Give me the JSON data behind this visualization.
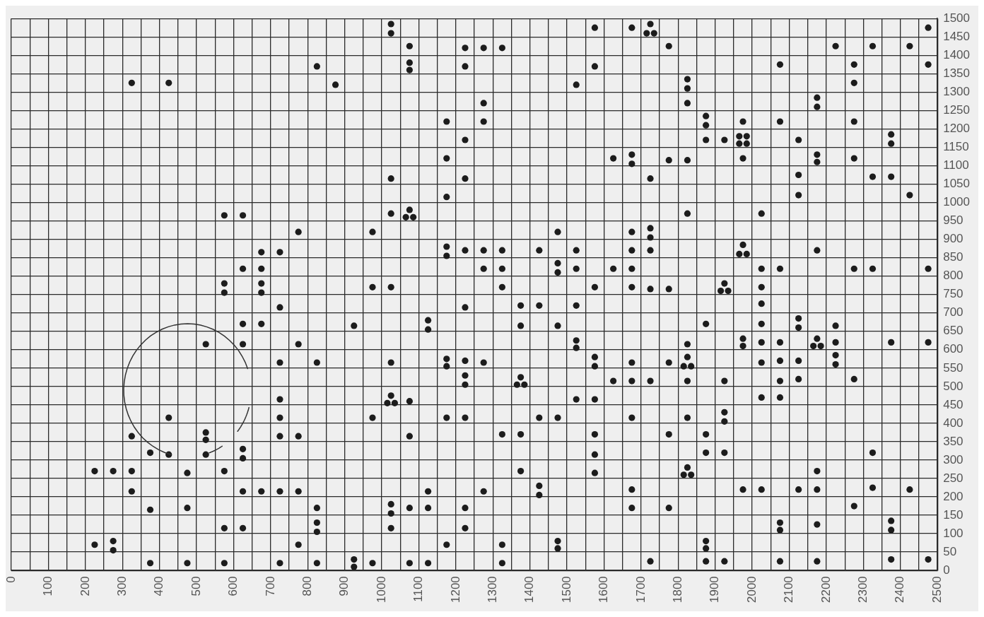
{
  "chart_data": {
    "type": "scatter",
    "grid": true,
    "marker": "circle",
    "xlim": [
      0,
      2500
    ],
    "ylim": [
      0,
      1500
    ],
    "xticks": [
      0,
      {
        "value": 50,
        "label": null
      },
      100,
      {
        "value": 150,
        "label": null
      },
      200,
      {
        "value": 250,
        "label": null
      },
      300,
      {
        "value": 350,
        "label": null
      },
      400,
      {
        "value": 450,
        "label": null
      },
      500,
      {
        "value": 550,
        "label": null
      },
      600,
      {
        "value": 650,
        "label": null
      },
      700,
      {
        "value": 750,
        "label": null
      },
      800,
      {
        "value": 850,
        "label": null
      },
      900,
      {
        "value": 950,
        "label": null
      },
      1000,
      {
        "value": 1050,
        "label": null
      },
      1100,
      {
        "value": 1150,
        "label": null
      },
      1200,
      {
        "value": 1250,
        "label": null
      },
      1300,
      {
        "value": 1350,
        "label": null
      },
      1400,
      {
        "value": 1450,
        "label": null
      },
      1500,
      {
        "value": 1550,
        "label": null
      },
      1600,
      {
        "value": 1650,
        "label": null
      },
      1700,
      {
        "value": 1750,
        "label": null
      },
      1800,
      {
        "value": 1850,
        "label": null
      },
      1900,
      {
        "value": 1950,
        "label": null
      },
      2000,
      {
        "value": 2050,
        "label": null
      },
      2100,
      {
        "value": 2150,
        "label": null
      },
      2200,
      {
        "value": 2250,
        "label": null
      },
      2300,
      {
        "value": 2350,
        "label": null
      },
      2400,
      {
        "value": 2450,
        "label": null
      },
      2500
    ],
    "yticks": [
      0,
      50,
      100,
      150,
      200,
      250,
      300,
      350,
      400,
      450,
      500,
      550,
      600,
      650,
      700,
      750,
      800,
      850,
      900,
      950,
      1000,
      1050,
      1100,
      1150,
      1200,
      1250,
      1300,
      1350,
      1400,
      1450,
      1500
    ],
    "series": [
      {
        "color": "#1c1c1c",
        "x": [
          225,
          225,
          275,
          275,
          275,
          325,
          325,
          325,
          325,
          375,
          375,
          375,
          425,
          425,
          425,
          475,
          475,
          475,
          525,
          525,
          525,
          525,
          575,
          575,
          575,
          575,
          575,
          575,
          625,
          625,
          625,
          625,
          625,
          625,
          625,
          625,
          675,
          675,
          675,
          675,
          675,
          675,
          725,
          725,
          725,
          725,
          725,
          725,
          725,
          725,
          775,
          775,
          775,
          775,
          775,
          825,
          825,
          825,
          825,
          825,
          825,
          875,
          925,
          925,
          925,
          975,
          975,
          975,
          975,
          1025,
          1025,
          1025,
          1025,
          1025,
          1025,
          1025,
          1025,
          1025,
          1025,
          1015,
          1035,
          1075,
          1075,
          1075,
          1075,
          1075,
          1075,
          1075,
          1075,
          1065,
          1085,
          1125,
          1125,
          1125,
          1125,
          1125,
          1175,
          1175,
          1175,
          1175,
          1175,
          1175,
          1175,
          1175,
          1175,
          1225,
          1225,
          1225,
          1225,
          1225,
          1225,
          1225,
          1225,
          1225,
          1225,
          1225,
          1225,
          1275,
          1275,
          1275,
          1275,
          1275,
          1275,
          1275,
          1325,
          1325,
          1325,
          1325,
          1325,
          1325,
          1325,
          1375,
          1375,
          1375,
          1375,
          1375,
          1365,
          1385,
          1425,
          1425,
          1425,
          1425,
          1425,
          1475,
          1475,
          1475,
          1475,
          1475,
          1475,
          1475,
          1525,
          1525,
          1525,
          1525,
          1525,
          1525,
          1525,
          1575,
          1575,
          1575,
          1575,
          1575,
          1575,
          1575,
          1575,
          1575,
          1625,
          1625,
          1625,
          1675,
          1675,
          1675,
          1675,
          1675,
          1675,
          1675,
          1675,
          1675,
          1675,
          1675,
          1675,
          1725,
          1725,
          1725,
          1725,
          1725,
          1725,
          1725,
          1725,
          1715,
          1735,
          1775,
          1775,
          1775,
          1775,
          1775,
          1775,
          1825,
          1825,
          1825,
          1825,
          1825,
          1825,
          1825,
          1825,
          1825,
          1825,
          1815,
          1835,
          1815,
          1835,
          1875,
          1875,
          1875,
          1875,
          1875,
          1875,
          1875,
          1875,
          1875,
          1925,
          1925,
          1925,
          1925,
          1925,
          1925,
          1925,
          1915,
          1935,
          1975,
          1975,
          1975,
          1975,
          1975,
          1975,
          1965,
          1985,
          1965,
          1985,
          1965,
          1985,
          2025,
          2025,
          2025,
          2025,
          2025,
          2025,
          2025,
          2025,
          2025,
          2075,
          2075,
          2075,
          2075,
          2075,
          2075,
          2075,
          2075,
          2075,
          2075,
          2125,
          2125,
          2125,
          2125,
          2125,
          2125,
          2125,
          2125,
          2175,
          2175,
          2175,
          2175,
          2175,
          2175,
          2175,
          2175,
          2175,
          2175,
          2165,
          2185,
          2225,
          2225,
          2225,
          2225,
          2225,
          2275,
          2275,
          2275,
          2275,
          2275,
          2275,
          2275,
          2325,
          2325,
          2325,
          2325,
          2325,
          2375,
          2375,
          2375,
          2375,
          2375,
          2375,
          2375,
          2425,
          2425,
          2425,
          2475,
          2475,
          2475,
          2475,
          2475
        ],
        "values": [
          270,
          70,
          270,
          80,
          55,
          1325,
          365,
          270,
          215,
          320,
          165,
          20,
          1325,
          415,
          315,
          265,
          170,
          20,
          615,
          375,
          355,
          315,
          965,
          780,
          755,
          270,
          115,
          20,
          965,
          820,
          670,
          615,
          330,
          305,
          215,
          115,
          865,
          820,
          780,
          755,
          670,
          215,
          865,
          715,
          565,
          465,
          415,
          365,
          215,
          20,
          920,
          615,
          365,
          215,
          70,
          1370,
          565,
          170,
          130,
          105,
          20,
          1320,
          665,
          30,
          10,
          920,
          770,
          415,
          20,
          1485,
          1460,
          1065,
          970,
          770,
          565,
          475,
          180,
          155,
          115,
          455,
          455,
          1425,
          1380,
          1360,
          980,
          460,
          365,
          170,
          20,
          960,
          960,
          680,
          655,
          215,
          170,
          20,
          1220,
          1120,
          1015,
          880,
          855,
          575,
          555,
          415,
          70,
          1420,
          1370,
          1170,
          1065,
          870,
          715,
          570,
          530,
          505,
          415,
          170,
          115,
          1420,
          1270,
          1220,
          870,
          820,
          565,
          215,
          1420,
          870,
          820,
          770,
          370,
          70,
          20,
          720,
          665,
          525,
          370,
          270,
          505,
          505,
          870,
          720,
          415,
          230,
          205,
          920,
          835,
          810,
          665,
          415,
          80,
          60,
          1320,
          870,
          820,
          720,
          625,
          605,
          465,
          1475,
          1370,
          770,
          580,
          555,
          465,
          370,
          315,
          265,
          1120,
          820,
          515,
          1475,
          1130,
          1105,
          920,
          870,
          820,
          770,
          565,
          515,
          415,
          220,
          170,
          1485,
          1065,
          930,
          905,
          870,
          765,
          515,
          25,
          1460,
          1460,
          1425,
          1115,
          765,
          565,
          370,
          170,
          1335,
          1310,
          1270,
          1115,
          970,
          615,
          580,
          515,
          415,
          280,
          555,
          555,
          260,
          260,
          1235,
          1210,
          1170,
          670,
          370,
          320,
          80,
          60,
          25,
          1170,
          780,
          515,
          430,
          405,
          320,
          25,
          760,
          760,
          1220,
          1120,
          885,
          630,
          610,
          220,
          1180,
          1180,
          1160,
          1160,
          860,
          860,
          970,
          820,
          770,
          725,
          670,
          620,
          565,
          470,
          220,
          1375,
          1220,
          820,
          620,
          570,
          515,
          470,
          130,
          110,
          25,
          1170,
          1075,
          1020,
          685,
          660,
          570,
          520,
          220,
          1285,
          1260,
          1130,
          1110,
          870,
          630,
          270,
          220,
          125,
          25,
          610,
          610,
          1425,
          665,
          620,
          585,
          560,
          1375,
          1325,
          1220,
          1120,
          820,
          520,
          175,
          1425,
          1070,
          820,
          320,
          225,
          1185,
          1160,
          1070,
          620,
          135,
          110,
          30,
          1425,
          1020,
          220,
          1475,
          1375,
          820,
          620,
          30
        ]
      }
    ]
  }
}
